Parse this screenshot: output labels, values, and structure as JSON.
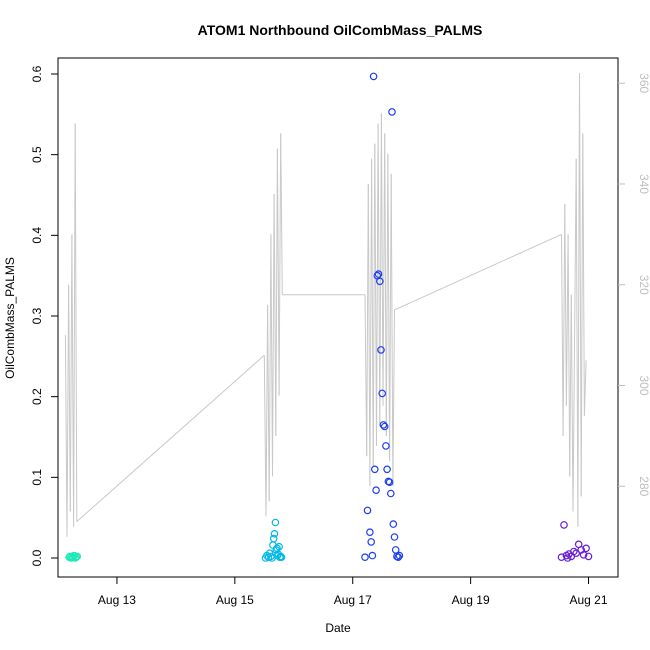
{
  "chart_data": {
    "type": "scatter",
    "title": "ATOM1 Northbound OilCombMass_PALMS",
    "xlabel": "Date",
    "ylabel": "OilCombMass_PALMS",
    "y2label": "",
    "xlim": [
      "2016-08-12 00:00",
      "2016-08-21 12:00"
    ],
    "ylim": [
      0,
      0.6
    ],
    "y2lim": [
      262,
      365
    ],
    "x_ticks": [
      {
        "date": "2016-08-13",
        "label": "Aug 13"
      },
      {
        "date": "2016-08-15",
        "label": "Aug 15"
      },
      {
        "date": "2016-08-17",
        "label": "Aug 17"
      },
      {
        "date": "2016-08-19",
        "label": "Aug 19"
      },
      {
        "date": "2016-08-21",
        "label": "Aug 21"
      }
    ],
    "y_ticks": [
      {
        "value": 0.0,
        "label": "0.0"
      },
      {
        "value": 0.1,
        "label": "0.1"
      },
      {
        "value": 0.2,
        "label": "0.2"
      },
      {
        "value": 0.3,
        "label": "0.3"
      },
      {
        "value": 0.4,
        "label": "0.4"
      },
      {
        "value": 0.5,
        "label": "0.5"
      },
      {
        "value": 0.6,
        "label": "0.6"
      }
    ],
    "y2_ticks": [
      {
        "value": 280,
        "label": "280"
      },
      {
        "value": 300,
        "label": "300"
      },
      {
        "value": 320,
        "label": "320"
      },
      {
        "value": 340,
        "label": "340"
      },
      {
        "value": 360,
        "label": "360"
      }
    ],
    "grid": false,
    "legend": "none",
    "series": [
      {
        "color": "#1de9b6",
        "x": [
          "2016-08-12 04:30",
          "2016-08-12 04:55",
          "2016-08-12 05:20",
          "2016-08-12 05:45",
          "2016-08-12 06:10",
          "2016-08-12 06:35",
          "2016-08-12 07:00",
          "2016-08-12 07:25",
          "2016-08-12 07:50"
        ],
        "y": [
          0.001,
          0.002,
          0.0,
          0.002,
          0.001,
          0.003,
          0.0,
          0.001,
          0.002
        ]
      },
      {
        "color": "#00b8e6",
        "x": [
          "2016-08-15 12:30",
          "2016-08-15 13:00",
          "2016-08-15 13:40",
          "2016-08-15 14:10",
          "2016-08-15 14:40",
          "2016-08-15 15:10",
          "2016-08-15 15:30",
          "2016-08-15 15:50",
          "2016-08-15 16:10",
          "2016-08-15 16:30",
          "2016-08-15 16:50",
          "2016-08-15 17:10",
          "2016-08-15 17:20",
          "2016-08-15 17:40",
          "2016-08-15 18:00",
          "2016-08-15 18:20",
          "2016-08-15 18:40",
          "2016-08-15 19:00"
        ],
        "y": [
          0.0,
          0.003,
          0.001,
          0.006,
          0.002,
          0.0,
          0.016,
          0.024,
          0.03,
          0.044,
          0.01,
          0.012,
          0.003,
          0.005,
          0.014,
          0.001,
          0.002,
          0.001
        ]
      },
      {
        "color": "#1c3ef0",
        "x": [
          "2016-08-17 05:00",
          "2016-08-17 06:00",
          "2016-08-17 07:00",
          "2016-08-17 07:30",
          "2016-08-17 08:00",
          "2016-08-17 08:30",
          "2016-08-17 09:00",
          "2016-08-17 09:30",
          "2016-08-17 10:00",
          "2016-08-17 10:30",
          "2016-08-17 11:00",
          "2016-08-17 11:30",
          "2016-08-17 12:00",
          "2016-08-17 12:30",
          "2016-08-17 13:00",
          "2016-08-17 13:30",
          "2016-08-17 14:00",
          "2016-08-17 14:30",
          "2016-08-17 15:00",
          "2016-08-17 15:30",
          "2016-08-17 16:00",
          "2016-08-17 16:30",
          "2016-08-17 17:00",
          "2016-08-17 17:30",
          "2016-08-17 18:00",
          "2016-08-17 18:30",
          "2016-08-17 19:00"
        ],
        "y": [
          0.001,
          0.059,
          0.032,
          0.02,
          0.003,
          0.597,
          0.11,
          0.084,
          0.35,
          0.352,
          0.343,
          0.258,
          0.204,
          0.165,
          0.163,
          0.139,
          0.11,
          0.095,
          0.094,
          0.08,
          0.553,
          0.042,
          0.026,
          0.01,
          0.002,
          0.001,
          0.003
        ]
      },
      {
        "color": "#6a1bd9",
        "x": [
          "2016-08-20 13:00",
          "2016-08-20 14:00",
          "2016-08-20 15:00",
          "2016-08-20 15:30",
          "2016-08-20 16:00",
          "2016-08-20 17:00",
          "2016-08-20 18:00",
          "2016-08-20 19:00",
          "2016-08-20 20:00",
          "2016-08-20 21:00",
          "2016-08-20 22:00",
          "2016-08-20 23:00",
          "2016-08-21 00:00"
        ],
        "y": [
          0.001,
          0.041,
          0.003,
          0.0,
          0.005,
          0.002,
          0.008,
          0.006,
          0.017,
          0.01,
          0.004,
          0.012,
          0.002
        ]
      }
    ],
    "secondary_line": {
      "color": "#c8c8c8",
      "x": [
        "2016-08-12 03:00",
        "2016-08-12 03:40",
        "2016-08-12 04:20",
        "2016-08-12 05:00",
        "2016-08-12 05:40",
        "2016-08-12 06:20",
        "2016-08-12 07:00",
        "2016-08-12 07:40",
        "2016-08-15 12:00",
        "2016-08-15 12:40",
        "2016-08-15 13:20",
        "2016-08-15 14:00",
        "2016-08-15 14:40",
        "2016-08-15 15:20",
        "2016-08-15 16:00",
        "2016-08-15 16:40",
        "2016-08-15 17:20",
        "2016-08-15 18:00",
        "2016-08-15 18:40",
        "2016-08-15 19:20",
        "2016-08-17 05:00",
        "2016-08-17 05:40",
        "2016-08-17 06:20",
        "2016-08-17 07:00",
        "2016-08-17 07:40",
        "2016-08-17 08:20",
        "2016-08-17 09:00",
        "2016-08-17 09:40",
        "2016-08-17 10:20",
        "2016-08-17 11:00",
        "2016-08-17 11:40",
        "2016-08-17 12:20",
        "2016-08-17 13:00",
        "2016-08-17 13:40",
        "2016-08-17 14:20",
        "2016-08-17 15:00",
        "2016-08-17 15:40",
        "2016-08-17 16:20",
        "2016-08-17 17:00",
        "2016-08-20 13:00",
        "2016-08-20 13:40",
        "2016-08-20 14:20",
        "2016-08-20 15:00",
        "2016-08-20 15:40",
        "2016-08-20 16:20",
        "2016-08-20 17:00",
        "2016-08-20 17:40",
        "2016-08-20 18:20",
        "2016-08-20 19:00",
        "2016-08-20 19:40",
        "2016-08-20 20:20",
        "2016-08-20 21:00",
        "2016-08-20 21:40",
        "2016-08-20 22:20",
        "2016-08-20 23:00"
      ],
      "y": [
        310,
        270,
        320,
        275,
        330,
        272,
        352,
        273,
        306,
        274,
        316,
        277,
        330,
        282,
        338,
        290,
        347,
        298,
        350,
        318,
        318,
        286,
        340,
        280,
        345,
        284,
        348,
        288,
        352,
        292,
        354,
        296,
        350,
        290,
        346,
        285,
        342,
        280,
        315,
        330,
        290,
        336,
        296,
        330,
        282,
        318,
        275,
        310,
        345,
        272,
        362,
        278,
        350,
        294,
        305
      ]
    }
  }
}
